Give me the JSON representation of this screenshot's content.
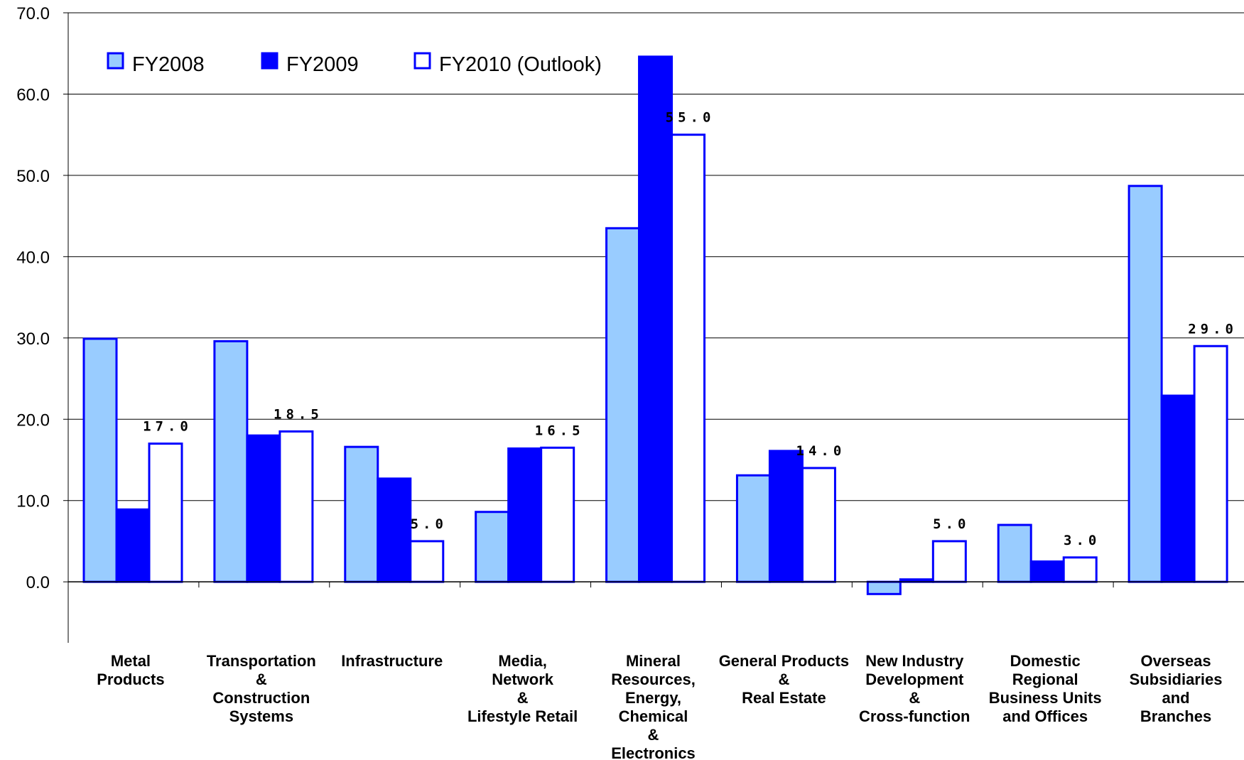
{
  "chart_data": {
    "type": "bar",
    "title": "",
    "xlabel": "",
    "ylabel": "",
    "ylim": [
      -7.5,
      70
    ],
    "yticks": [
      "70.0",
      "60.0",
      "50.0",
      "40.0",
      "30.0",
      "20.0",
      "10.0",
      "0.0"
    ],
    "grid": true,
    "legend_position": "top-left",
    "categories": [
      [
        "Metal",
        "Products"
      ],
      [
        "Transportation",
        "&",
        "Construction",
        "Systems"
      ],
      [
        "Infrastructure"
      ],
      [
        "Media,",
        "Network",
        "&",
        "Lifestyle Retail"
      ],
      [
        "Mineral",
        "Resources,",
        "Energy,",
        "Chemical",
        "&",
        "Electronics"
      ],
      [
        "General Products",
        "&",
        "Real Estate"
      ],
      [
        "New Industry",
        "Development",
        "&",
        "Cross-function"
      ],
      [
        "Domestic",
        "Regional",
        "Business Units",
        "and Offices"
      ],
      [
        "Overseas",
        "Subsidiaries",
        "and",
        "Branches"
      ]
    ],
    "series": [
      {
        "name": "FY2008",
        "fill": "#99ccff",
        "stroke": "#0000ff",
        "values": [
          29.9,
          29.6,
          16.6,
          8.6,
          43.5,
          13.1,
          -1.5,
          7.0,
          48.7
        ]
      },
      {
        "name": "FY2009",
        "fill": "#0000ff",
        "stroke": "#0000ff",
        "values": [
          8.9,
          18.0,
          12.7,
          16.4,
          64.6,
          16.1,
          0.3,
          2.5,
          22.9
        ]
      },
      {
        "name": "FY2010 (Outlook)",
        "fill": "#ffffff",
        "stroke": "#0000ff",
        "values": [
          17.0,
          18.5,
          5.0,
          16.5,
          55.0,
          14.0,
          5.0,
          3.0,
          29.0
        ]
      }
    ],
    "data_labels": [
      "17.0",
      "18.5",
      "5.0",
      "16.5",
      "55.0",
      "14.0",
      "5.0",
      "3.0",
      "29.0"
    ]
  },
  "legend": {
    "items": [
      {
        "label": "FY2008"
      },
      {
        "label": "FY2009"
      },
      {
        "label": "FY2010 (Outlook)"
      }
    ]
  }
}
